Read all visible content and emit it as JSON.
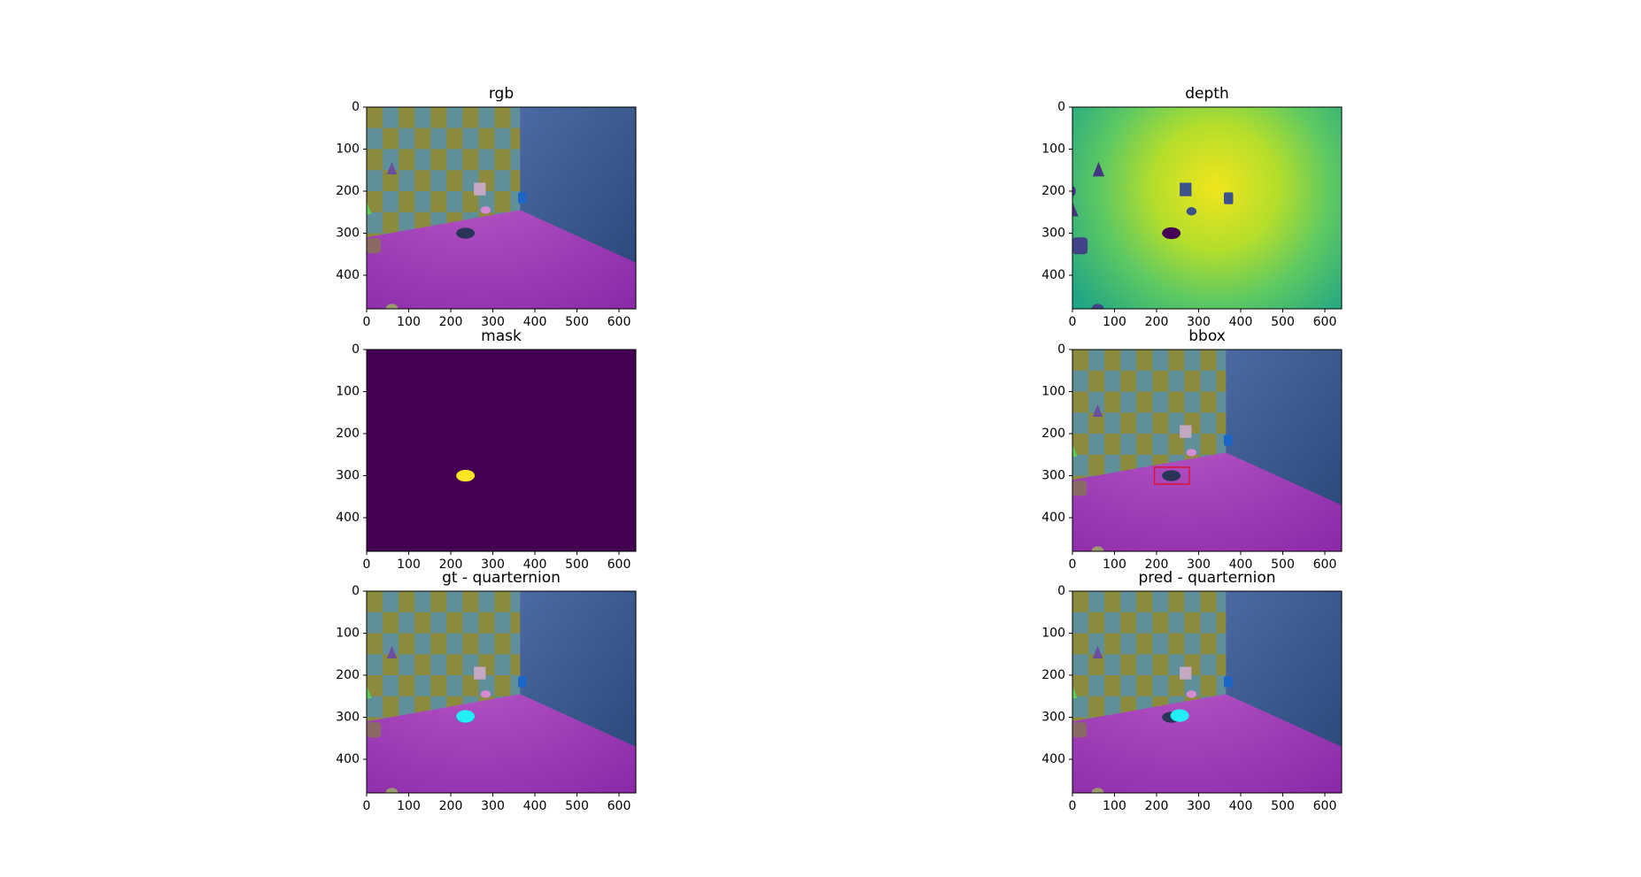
{
  "chart_data": [
    {
      "type": "image",
      "title": "rgb",
      "xlim": [
        0,
        640
      ],
      "ylim": [
        480,
        0
      ],
      "xticks": [
        0,
        100,
        200,
        300,
        400,
        500,
        600
      ],
      "yticks": [
        0,
        100,
        200,
        300,
        400
      ]
    },
    {
      "type": "image",
      "title": "depth",
      "xlim": [
        0,
        640
      ],
      "ylim": [
        480,
        0
      ],
      "xticks": [
        0,
        100,
        200,
        300,
        400,
        500,
        600
      ],
      "yticks": [
        0,
        100,
        200,
        300,
        400
      ]
    },
    {
      "type": "image",
      "title": "mask",
      "xlim": [
        0,
        640
      ],
      "ylim": [
        480,
        0
      ],
      "xticks": [
        0,
        100,
        200,
        300,
        400,
        500,
        600
      ],
      "yticks": [
        0,
        100,
        200,
        300,
        400
      ]
    },
    {
      "type": "image",
      "title": "bbox",
      "xlim": [
        0,
        640
      ],
      "ylim": [
        480,
        0
      ],
      "xticks": [
        0,
        100,
        200,
        300,
        400,
        500,
        600
      ],
      "yticks": [
        0,
        100,
        200,
        300,
        400
      ]
    },
    {
      "type": "image",
      "title": "gt - quarternion",
      "xlim": [
        0,
        640
      ],
      "ylim": [
        480,
        0
      ],
      "xticks": [
        0,
        100,
        200,
        300,
        400,
        500,
        600
      ],
      "yticks": [
        0,
        100,
        200,
        300,
        400
      ]
    },
    {
      "type": "image",
      "title": "pred - quarternion",
      "xlim": [
        0,
        640
      ],
      "ylim": [
        480,
        0
      ],
      "xticks": [
        0,
        100,
        200,
        300,
        400,
        500,
        600
      ],
      "yticks": [
        0,
        100,
        200,
        300,
        400
      ]
    }
  ]
}
